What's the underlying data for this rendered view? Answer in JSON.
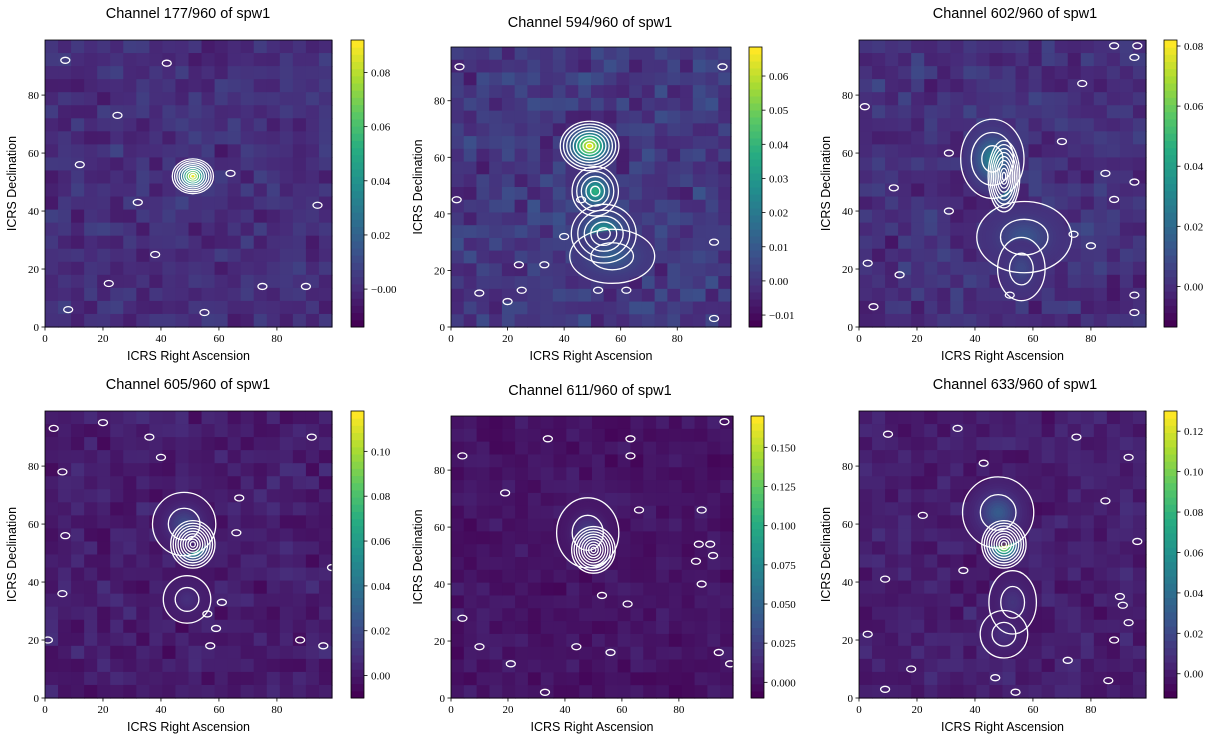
{
  "chart_data": [
    {
      "type": "heatmap",
      "title": "Channel 177/960 of spw1",
      "channel": "177/960",
      "spw": "spw1",
      "xlabel": "ICRS Right Ascension",
      "ylabel": "ICRS Declination",
      "xlim": [
        0,
        99
      ],
      "ylim": [
        0,
        99
      ],
      "xticks": [
        0,
        20,
        40,
        60,
        80
      ],
      "yticks": [
        0,
        20,
        40,
        60,
        80
      ],
      "colorbar": {
        "min": -0.014,
        "max": 0.092,
        "ticks": [
          -0.0,
          0.02,
          0.04,
          0.06,
          0.08
        ],
        "tick_labels": [
          "−0.00",
          "0.02",
          "0.04",
          "0.06",
          "0.08"
        ]
      },
      "colormap": "viridis",
      "contour_color": "#ffffff",
      "sources": [
        {
          "x": 51,
          "y": 52,
          "peak": 0.092,
          "sx": 2.6,
          "sy": 2.2
        }
      ],
      "noise_islands": [
        [
          7,
          92
        ],
        [
          42,
          91
        ],
        [
          25,
          73
        ],
        [
          12,
          56
        ],
        [
          64,
          53
        ],
        [
          32,
          43
        ],
        [
          94,
          42
        ],
        [
          38,
          25
        ],
        [
          22,
          15
        ],
        [
          75,
          14
        ],
        [
          90,
          14
        ],
        [
          8,
          6
        ],
        [
          55,
          5
        ]
      ]
    },
    {
      "type": "heatmap",
      "title": "Channel 594/960 of spw1",
      "channel": "594/960",
      "spw": "spw1",
      "xlabel": "ICRS Right Ascension",
      "ylabel": "ICRS Declination",
      "xlim": [
        0,
        99
      ],
      "ylim": [
        0,
        99
      ],
      "xticks": [
        0,
        20,
        40,
        60,
        80
      ],
      "yticks": [
        0,
        20,
        40,
        60,
        80
      ],
      "colorbar": {
        "min": -0.0135,
        "max": 0.0685,
        "ticks": [
          -0.01,
          0.0,
          0.01,
          0.02,
          0.03,
          0.04,
          0.05,
          0.06
        ],
        "tick_labels": [
          "−0.01",
          "0.00",
          "0.01",
          "0.02",
          "0.03",
          "0.04",
          "0.05",
          "0.06"
        ]
      },
      "colormap": "viridis",
      "contour_color": "#ffffff",
      "sources": [
        {
          "x": 49,
          "y": 64,
          "peak": 0.068,
          "sx": 3.8,
          "sy": 3.2
        },
        {
          "x": 51,
          "y": 48,
          "peak": 0.04,
          "sx": 3.0,
          "sy": 3.2
        },
        {
          "x": 54,
          "y": 33,
          "peak": 0.036,
          "sx": 4.2,
          "sy": 3.8
        },
        {
          "x": 57,
          "y": 25,
          "peak": 0.012,
          "sx": 5.5,
          "sy": 3.5
        }
      ],
      "noise_islands": [
        [
          3,
          92
        ],
        [
          96,
          92
        ],
        [
          2,
          45
        ],
        [
          40,
          32
        ],
        [
          93,
          30
        ],
        [
          46,
          45
        ],
        [
          33,
          22
        ],
        [
          24,
          22
        ],
        [
          20,
          9
        ],
        [
          25,
          13
        ],
        [
          52,
          13
        ],
        [
          62,
          13
        ],
        [
          10,
          12
        ],
        [
          93,
          3
        ]
      ]
    },
    {
      "type": "heatmap",
      "title": "Channel 602/960 of spw1",
      "channel": "602/960",
      "spw": "spw1",
      "xlabel": "ICRS Right Ascension",
      "ylabel": "ICRS Declination",
      "xlim": [
        0,
        99
      ],
      "ylim": [
        0,
        99
      ],
      "xticks": [
        0,
        20,
        40,
        60,
        80
      ],
      "yticks": [
        0,
        20,
        40,
        60,
        80
      ],
      "colorbar": {
        "min": -0.0135,
        "max": 0.082,
        "ticks": [
          0.0,
          0.02,
          0.04,
          0.06,
          0.08
        ],
        "tick_labels": [
          "0.00",
          "0.02",
          "0.04",
          "0.06",
          "0.08"
        ]
      },
      "colormap": "viridis",
      "contour_color": "#ffffff",
      "sources": [
        {
          "x": 50,
          "y": 52,
          "peak": 0.082,
          "sx": 2.0,
          "sy": 4.5
        },
        {
          "x": 46,
          "y": 58,
          "peak": 0.03,
          "sx": 4.0,
          "sy": 5.0
        },
        {
          "x": 57,
          "y": 31,
          "peak": 0.012,
          "sx": 6.0,
          "sy": 4.5
        },
        {
          "x": 56,
          "y": 20,
          "peak": 0.008,
          "sx": 3.0,
          "sy": 4.0
        }
      ],
      "noise_islands": [
        [
          88,
          97
        ],
        [
          96,
          97
        ],
        [
          2,
          76
        ],
        [
          77,
          84
        ],
        [
          95,
          93
        ],
        [
          31,
          60
        ],
        [
          70,
          64
        ],
        [
          12,
          48
        ],
        [
          31,
          40
        ],
        [
          85,
          53
        ],
        [
          95,
          50
        ],
        [
          88,
          44
        ],
        [
          74,
          32
        ],
        [
          80,
          28
        ],
        [
          14,
          18
        ],
        [
          3,
          22
        ],
        [
          5,
          7
        ],
        [
          95,
          11
        ],
        [
          95,
          5
        ],
        [
          52,
          11
        ]
      ]
    },
    {
      "type": "heatmap",
      "title": "Channel 605/960 of spw1",
      "channel": "605/960",
      "spw": "spw1",
      "xlabel": "ICRS Right Ascension",
      "ylabel": "ICRS Declination",
      "xlim": [
        0,
        99
      ],
      "ylim": [
        0,
        99
      ],
      "xticks": [
        0,
        20,
        40,
        60,
        80
      ],
      "yticks": [
        0,
        20,
        40,
        60,
        80
      ],
      "colorbar": {
        "min": -0.01,
        "max": 0.118,
        "ticks": [
          0.0,
          0.02,
          0.04,
          0.06,
          0.08,
          0.1
        ],
        "tick_labels": [
          "0.00",
          "0.02",
          "0.04",
          "0.06",
          "0.08",
          "0.10"
        ]
      },
      "colormap": "viridis",
      "contour_color": "#ffffff",
      "sources": [
        {
          "x": 51,
          "y": 53,
          "peak": 0.118,
          "sx": 2.8,
          "sy": 3.0
        },
        {
          "x": 48,
          "y": 60,
          "peak": 0.02,
          "sx": 4.0,
          "sy": 4.0
        },
        {
          "x": 49,
          "y": 34,
          "peak": 0.008,
          "sx": 3.0,
          "sy": 3.0
        }
      ],
      "noise_islands": [
        [
          3,
          93
        ],
        [
          20,
          95
        ],
        [
          36,
          90
        ],
        [
          40,
          83
        ],
        [
          92,
          90
        ],
        [
          6,
          78
        ],
        [
          67,
          69
        ],
        [
          7,
          56
        ],
        [
          66,
          57
        ],
        [
          99,
          45
        ],
        [
          6,
          36
        ],
        [
          61,
          33
        ],
        [
          56,
          29
        ],
        [
          59,
          24
        ],
        [
          1,
          20
        ],
        [
          57,
          18
        ],
        [
          96,
          18
        ],
        [
          88,
          20
        ]
      ]
    },
    {
      "type": "heatmap",
      "title": "Channel 611/960 of spw1",
      "channel": "611/960",
      "spw": "spw1",
      "xlabel": "ICRS Right Ascension",
      "ylabel": "ICRS Declination",
      "xlim": [
        0,
        99
      ],
      "ylim": [
        0,
        99
      ],
      "xticks": [
        0,
        20,
        40,
        60,
        80
      ],
      "yticks": [
        0,
        20,
        40,
        60,
        80
      ],
      "colorbar": {
        "min": -0.01,
        "max": 0.17,
        "ticks": [
          0.0,
          0.025,
          0.05,
          0.075,
          0.1,
          0.125,
          0.15
        ],
        "tick_labels": [
          "0.000",
          "0.025",
          "0.050",
          "0.075",
          "0.100",
          "0.125",
          "0.150"
        ]
      },
      "colormap": "viridis",
      "contour_color": "#ffffff",
      "sources": [
        {
          "x": 50,
          "y": 52,
          "peak": 0.17,
          "sx": 2.8,
          "sy": 3.0
        },
        {
          "x": 48,
          "y": 58,
          "peak": 0.025,
          "sx": 4.0,
          "sy": 4.5
        }
      ],
      "noise_islands": [
        [
          34,
          91
        ],
        [
          63,
          91
        ],
        [
          63,
          85
        ],
        [
          96,
          97
        ],
        [
          4,
          85
        ],
        [
          88,
          66
        ],
        [
          19,
          72
        ],
        [
          66,
          66
        ],
        [
          87,
          54
        ],
        [
          91,
          54
        ],
        [
          86,
          48
        ],
        [
          92,
          50
        ],
        [
          88,
          40
        ],
        [
          53,
          36
        ],
        [
          62,
          33
        ],
        [
          4,
          28
        ],
        [
          10,
          18
        ],
        [
          56,
          16
        ],
        [
          21,
          12
        ],
        [
          44,
          18
        ],
        [
          94,
          16
        ],
        [
          98,
          12
        ],
        [
          33,
          2
        ]
      ]
    },
    {
      "type": "heatmap",
      "title": "Channel 633/960 of spw1",
      "channel": "633/960",
      "spw": "spw1",
      "xlabel": "ICRS Right Ascension",
      "ylabel": "ICRS Declination",
      "xlim": [
        0,
        99
      ],
      "ylim": [
        0,
        99
      ],
      "xticks": [
        0,
        20,
        40,
        60,
        80
      ],
      "yticks": [
        0,
        20,
        40,
        60,
        80
      ],
      "colorbar": {
        "min": -0.012,
        "max": 0.13,
        "ticks": [
          0.0,
          0.02,
          0.04,
          0.06,
          0.08,
          0.1,
          0.12
        ],
        "tick_labels": [
          "0.00",
          "0.02",
          "0.04",
          "0.06",
          "0.08",
          "0.10",
          "0.12"
        ]
      },
      "colormap": "viridis",
      "contour_color": "#ffffff",
      "sources": [
        {
          "x": 50,
          "y": 53,
          "peak": 0.13,
          "sx": 2.8,
          "sy": 3.0
        },
        {
          "x": 48,
          "y": 64,
          "peak": 0.03,
          "sx": 4.5,
          "sy": 4.5
        },
        {
          "x": 53,
          "y": 33,
          "peak": 0.01,
          "sx": 3.0,
          "sy": 4.0
        },
        {
          "x": 50,
          "y": 22,
          "peak": 0.008,
          "sx": 3.0,
          "sy": 3.0
        }
      ],
      "noise_islands": [
        [
          34,
          93
        ],
        [
          10,
          91
        ],
        [
          43,
          81
        ],
        [
          75,
          90
        ],
        [
          93,
          83
        ],
        [
          85,
          68
        ],
        [
          22,
          63
        ],
        [
          9,
          41
        ],
        [
          36,
          44
        ],
        [
          90,
          35
        ],
        [
          91,
          32
        ],
        [
          93,
          26
        ],
        [
          88,
          20
        ],
        [
          96,
          54
        ],
        [
          3,
          22
        ],
        [
          18,
          10
        ],
        [
          47,
          7
        ],
        [
          72,
          13
        ],
        [
          86,
          6
        ],
        [
          9,
          3
        ],
        [
          54,
          2
        ]
      ]
    }
  ]
}
